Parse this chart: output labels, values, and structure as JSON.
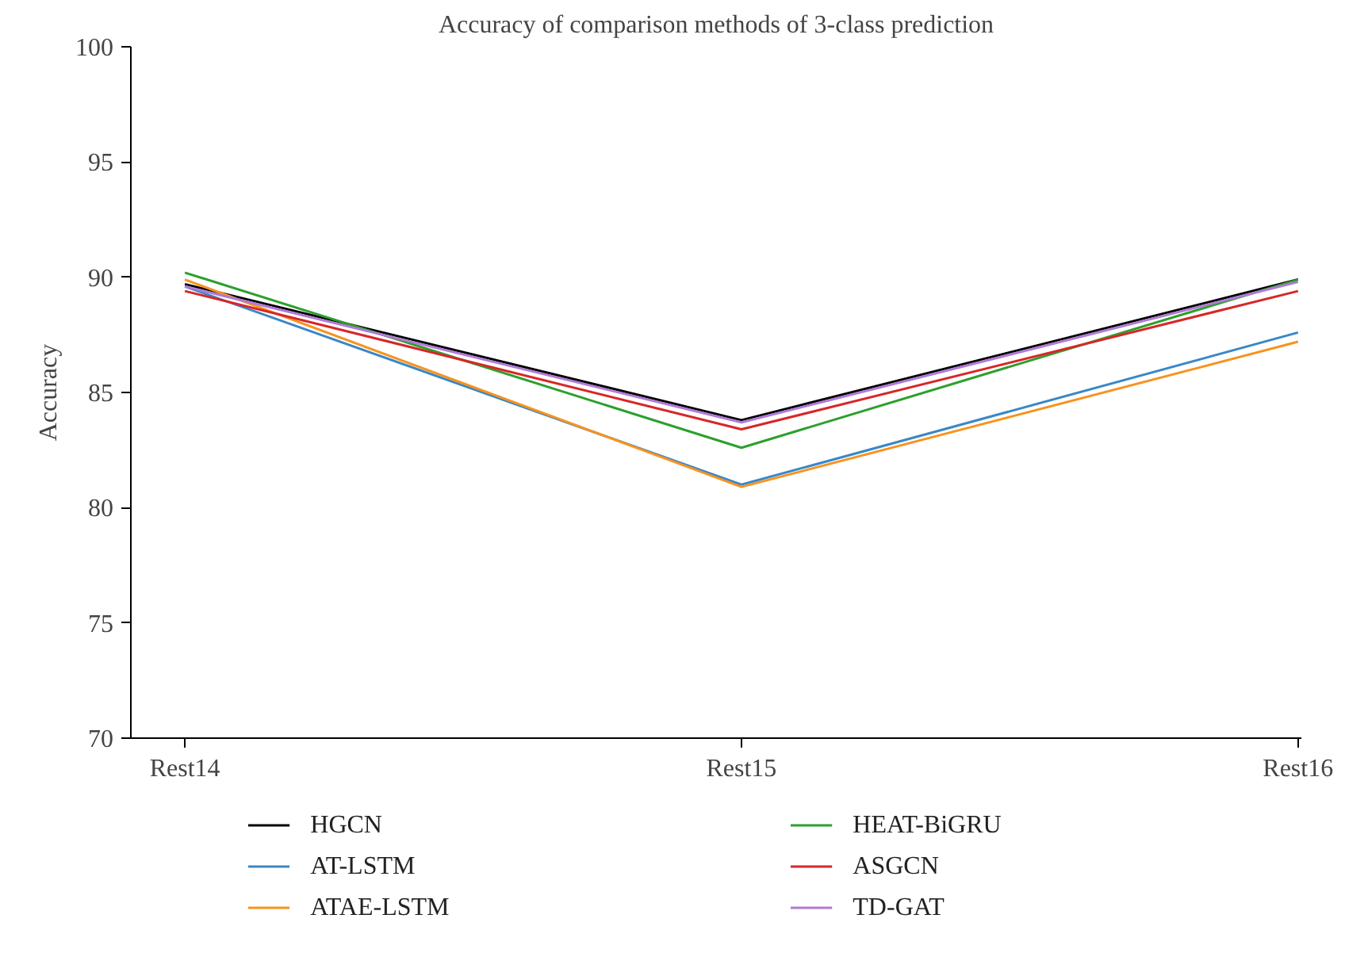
{
  "chart_data": {
    "type": "line",
    "title": "Accuracy of comparison methods of 3-class prediction",
    "ylabel": "Accuracy",
    "categories": [
      "Rest14",
      "Rest15",
      "Rest16"
    ],
    "ylim": [
      70,
      100
    ],
    "yticks": [
      70,
      75,
      80,
      85,
      90,
      95,
      100
    ],
    "grid": false,
    "legend": "bottom",
    "marker": "none",
    "line_style": "solid",
    "series": [
      {
        "name": "HGCN",
        "color": "#000000",
        "values": [
          89.7,
          83.8,
          89.9
        ]
      },
      {
        "name": "AT-LSTM",
        "color": "#3a87c7",
        "values": [
          89.6,
          81.0,
          87.6
        ]
      },
      {
        "name": "ATAE-LSTM",
        "color": "#f7931e",
        "values": [
          89.9,
          80.9,
          87.2
        ]
      },
      {
        "name": "HEAT-BiGRU",
        "color": "#2ca02c",
        "values": [
          90.2,
          82.6,
          89.9
        ]
      },
      {
        "name": "ASGCN",
        "color": "#d62728",
        "values": [
          89.4,
          83.4,
          89.4
        ]
      },
      {
        "name": "TD-GAT",
        "color": "#b07ad6",
        "values": [
          89.6,
          83.7,
          89.8
        ]
      }
    ]
  }
}
